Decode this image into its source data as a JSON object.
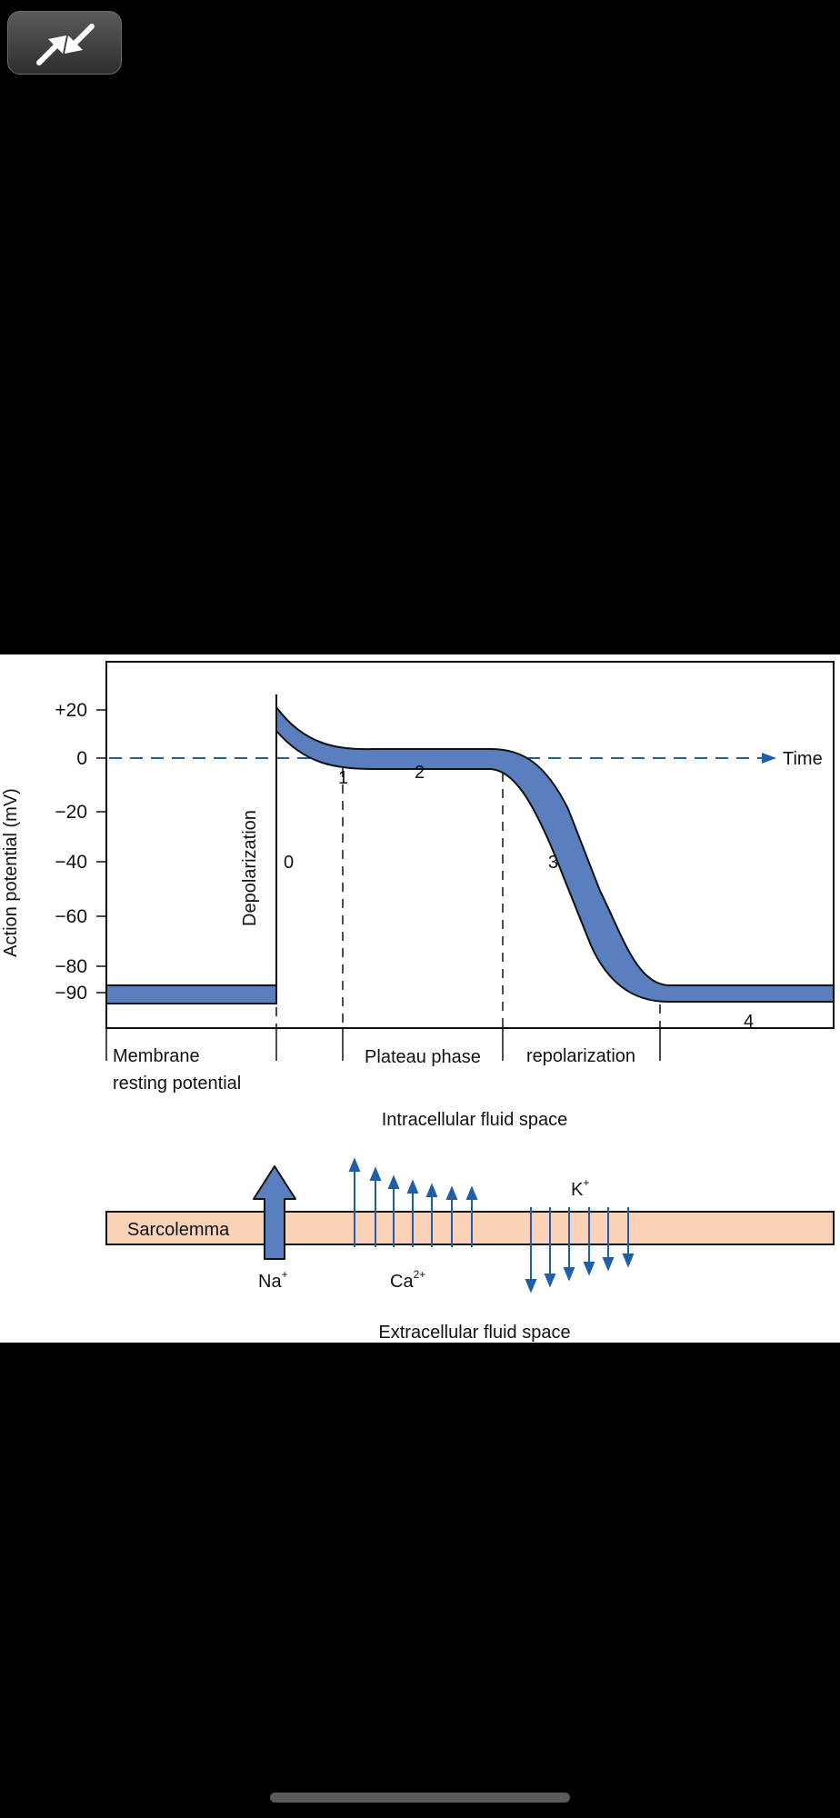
{
  "viewer": {
    "exit_fullscreen_icon": "exit-fullscreen-icon",
    "accent_color": "#5a7fbf"
  },
  "figure": {
    "ylabel": "Action potential (mV)",
    "time_label": "Time",
    "ticks": [
      "+20",
      "0",
      "−20",
      "−40",
      "−60",
      "−80",
      "−90"
    ],
    "phase_numbers": {
      "p0": "0",
      "p1": "1",
      "p2": "2",
      "p3": "3",
      "p4": "4"
    },
    "depolarization": "Depolarization",
    "bottom_labels": {
      "membrane": "Membrane",
      "resting": "resting potential",
      "plateau": "Plateau phase",
      "repolarization": "repolarization"
    },
    "intracellular": "Intracellular fluid space",
    "extracellular": "Extracellular fluid space",
    "sarcolemma": "Sarcolemma",
    "ions": {
      "na": "Na",
      "na_sup": "+",
      "ca": "Ca",
      "ca_sup": "2+",
      "k": "K",
      "k_sup": "+"
    },
    "colors": {
      "curve": "#5a7fbf",
      "arrow": "#1f5fa8",
      "membrane": "#f9d2b8"
    }
  }
}
